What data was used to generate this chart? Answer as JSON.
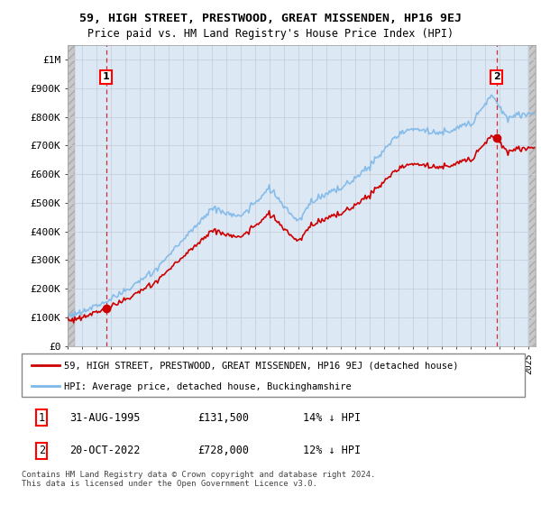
{
  "title": "59, HIGH STREET, PRESTWOOD, GREAT MISSENDEN, HP16 9EJ",
  "subtitle": "Price paid vs. HM Land Registry's House Price Index (HPI)",
  "ylabel_ticks": [
    "£0",
    "£100K",
    "£200K",
    "£300K",
    "£400K",
    "£500K",
    "£600K",
    "£700K",
    "£800K",
    "£900K",
    "£1M"
  ],
  "ytick_values": [
    0,
    100000,
    200000,
    300000,
    400000,
    500000,
    600000,
    700000,
    800000,
    900000,
    1000000
  ],
  "xlim_start": 1993.0,
  "xlim_end": 2025.5,
  "ylim": [
    0,
    1050000
  ],
  "hpi_color": "#7eb8e8",
  "price_color": "#cc0000",
  "bg_color": "#dde8f5",
  "hatch_color": "#bbbbbb",
  "grid_color": "#cccccc",
  "dashed_line_color": "#cc0000",
  "transaction1_year": 1995.67,
  "transaction1_price": 131500,
  "transaction2_year": 2022.79,
  "transaction2_price": 728000,
  "legend_line1": "59, HIGH STREET, PRESTWOOD, GREAT MISSENDEN, HP16 9EJ (detached house)",
  "legend_line2": "HPI: Average price, detached house, Buckinghamshire",
  "table_row1": [
    "1",
    "31-AUG-1995",
    "£131,500",
    "14% ↓ HPI"
  ],
  "table_row2": [
    "2",
    "20-OCT-2022",
    "£728,000",
    "12% ↓ HPI"
  ],
  "footer": "Contains HM Land Registry data © Crown copyright and database right 2024.\nThis data is licensed under the Open Government Licence v3.0."
}
